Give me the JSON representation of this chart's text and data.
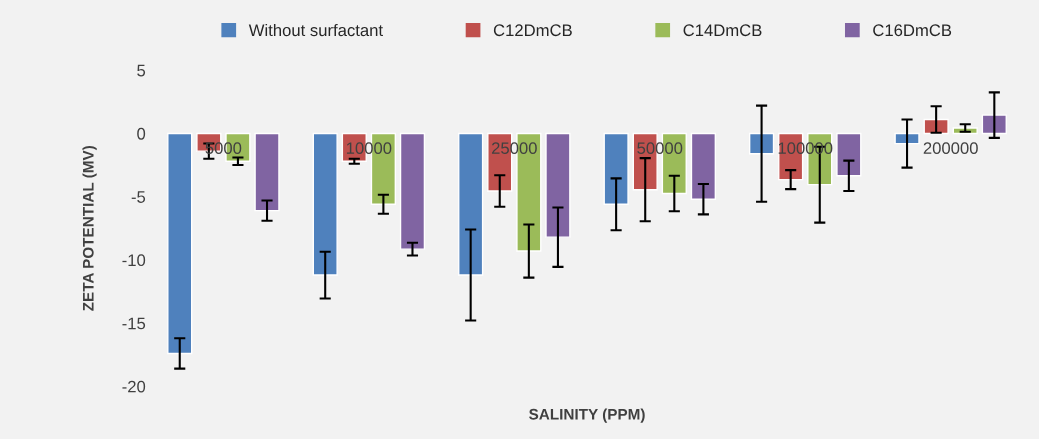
{
  "chart_data": {
    "type": "bar",
    "xlabel": "SALINITY (PPM)",
    "ylabel": "ZETA POTENTIAL (MV)",
    "categories": [
      "5000",
      "10000",
      "25000",
      "50000",
      "100000",
      "200000"
    ],
    "series": [
      {
        "name": "Without surfactant",
        "color": "#4f81bd",
        "values": [
          -17.4,
          -11.2,
          -11.2,
          -5.6,
          -1.6,
          -0.8
        ],
        "errors": [
          1.2,
          1.85,
          3.6,
          2.05,
          3.8,
          1.9
        ]
      },
      {
        "name": "C12DmCB",
        "color": "#c0504d",
        "values": [
          -1.4,
          -2.2,
          -4.55,
          -4.45,
          -3.65,
          1.1
        ],
        "errors": [
          0.6,
          0.2,
          1.25,
          2.5,
          0.75,
          1.05
        ]
      },
      {
        "name": "C14DmCB",
        "color": "#9bbb59",
        "values": [
          -2.2,
          -5.6,
          -9.3,
          -4.75,
          -4.05,
          0.43
        ],
        "errors": [
          0.3,
          0.75,
          2.1,
          1.4,
          3.0,
          0.3
        ]
      },
      {
        "name": "C16DmCB",
        "color": "#8064a2",
        "values": [
          -6.1,
          -9.15,
          -8.2,
          -5.2,
          -3.35,
          1.45
        ],
        "errors": [
          0.8,
          0.5,
          2.35,
          1.2,
          1.2,
          1.8
        ]
      }
    ],
    "ylim": [
      -20,
      5
    ],
    "yticks": [
      -20,
      -15,
      -10,
      -5,
      0,
      5
    ],
    "grid": false,
    "legend": "top"
  }
}
